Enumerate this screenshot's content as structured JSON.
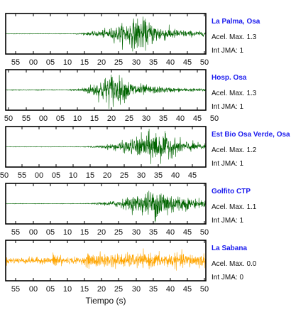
{
  "chart_data": {
    "type": "line",
    "xlabel": "Tiempo (s)",
    "panels": [
      {
        "station": "La Palma, Osa",
        "accel_label": "Acel. Max. 1.3",
        "intensity_label": "Int JMA: 1",
        "color": "#006400",
        "tick_labels": [
          "55",
          "00",
          "05",
          "10",
          "15",
          "20",
          "25",
          "30",
          "35",
          "40",
          "45",
          "50"
        ],
        "onset": 16,
        "peak_time": 33,
        "peak_amp": 1.0,
        "noise": 0.015
      },
      {
        "station": "Hosp. Osa",
        "accel_label": "Acel. Max. 1.3",
        "intensity_label": "Int JMA: 1",
        "color": "#006400",
        "tick_labels": [
          "50",
          "55",
          "00",
          "05",
          "10",
          "15",
          "20",
          "25",
          "30",
          "35",
          "40",
          "45",
          "50"
        ],
        "onset": 15,
        "peak_time": 26,
        "peak_amp": 1.0,
        "noise": 0.02
      },
      {
        "station": "Est Bio Osa Verde, Osa",
        "accel_label": "Acel. Max. 1.2",
        "intensity_label": "Int JMA: 1",
        "color": "#006400",
        "tick_labels": [
          "50",
          "55",
          "00",
          "05",
          "10",
          "15",
          "20",
          "25",
          "30",
          "35",
          "40",
          "45"
        ],
        "onset": 19,
        "peak_time": 37,
        "peak_amp": 1.0,
        "noise": 0.012
      },
      {
        "station": "Golfito CTP",
        "accel_label": "Acel. Max. 1.1",
        "intensity_label": "Int JMA: 1",
        "color": "#006400",
        "tick_labels": [
          "55",
          "00",
          "05",
          "10",
          "15",
          "20",
          "25",
          "30",
          "35",
          "40",
          "45",
          "50"
        ],
        "onset": 19,
        "peak_time": 38,
        "peak_amp": 1.0,
        "noise": 0.012
      },
      {
        "station": "La Sabana",
        "accel_label": "Acel. Max. 0.0",
        "intensity_label": "Int JMA: 0",
        "color": "#FFA500",
        "tick_labels": [
          "55",
          "00",
          "05",
          "10",
          "15",
          "20",
          "25",
          "30",
          "35",
          "40",
          "45",
          "50"
        ],
        "onset": 20,
        "peak_time": 35,
        "peak_amp": 1.0,
        "noise": 0.35
      }
    ]
  }
}
